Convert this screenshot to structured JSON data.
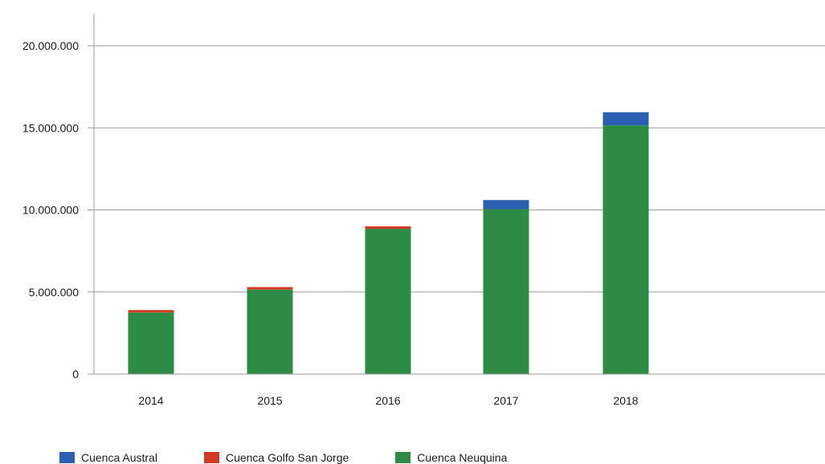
{
  "chart_data": {
    "type": "bar",
    "stacked": true,
    "categories": [
      "2014",
      "2015",
      "2016",
      "2017",
      "2018"
    ],
    "series": [
      {
        "name": "Cuenca Neuquina",
        "color": "#2e8b45",
        "values": [
          3750000,
          5150000,
          8850000,
          10050000,
          15150000
        ]
      },
      {
        "name": "Cuenca Golfo San Jorge",
        "color": "#d33a26",
        "values": [
          150000,
          150000,
          150000,
          0,
          0
        ]
      },
      {
        "name": "Cuenca Austral",
        "color": "#2b5fb4",
        "values": [
          0,
          0,
          0,
          550000,
          800000
        ]
      }
    ],
    "y_ticks": [
      "0",
      "5.000.000",
      "10.000.000",
      "15.000.000",
      "20.000.000"
    ],
    "ylim": [
      0,
      20000000
    ],
    "grid": true,
    "legend_position": "bottom-left",
    "legend_order": [
      "Cuenca Austral",
      "Cuenca Golfo San Jorge",
      "Cuenca Neuquina"
    ]
  }
}
